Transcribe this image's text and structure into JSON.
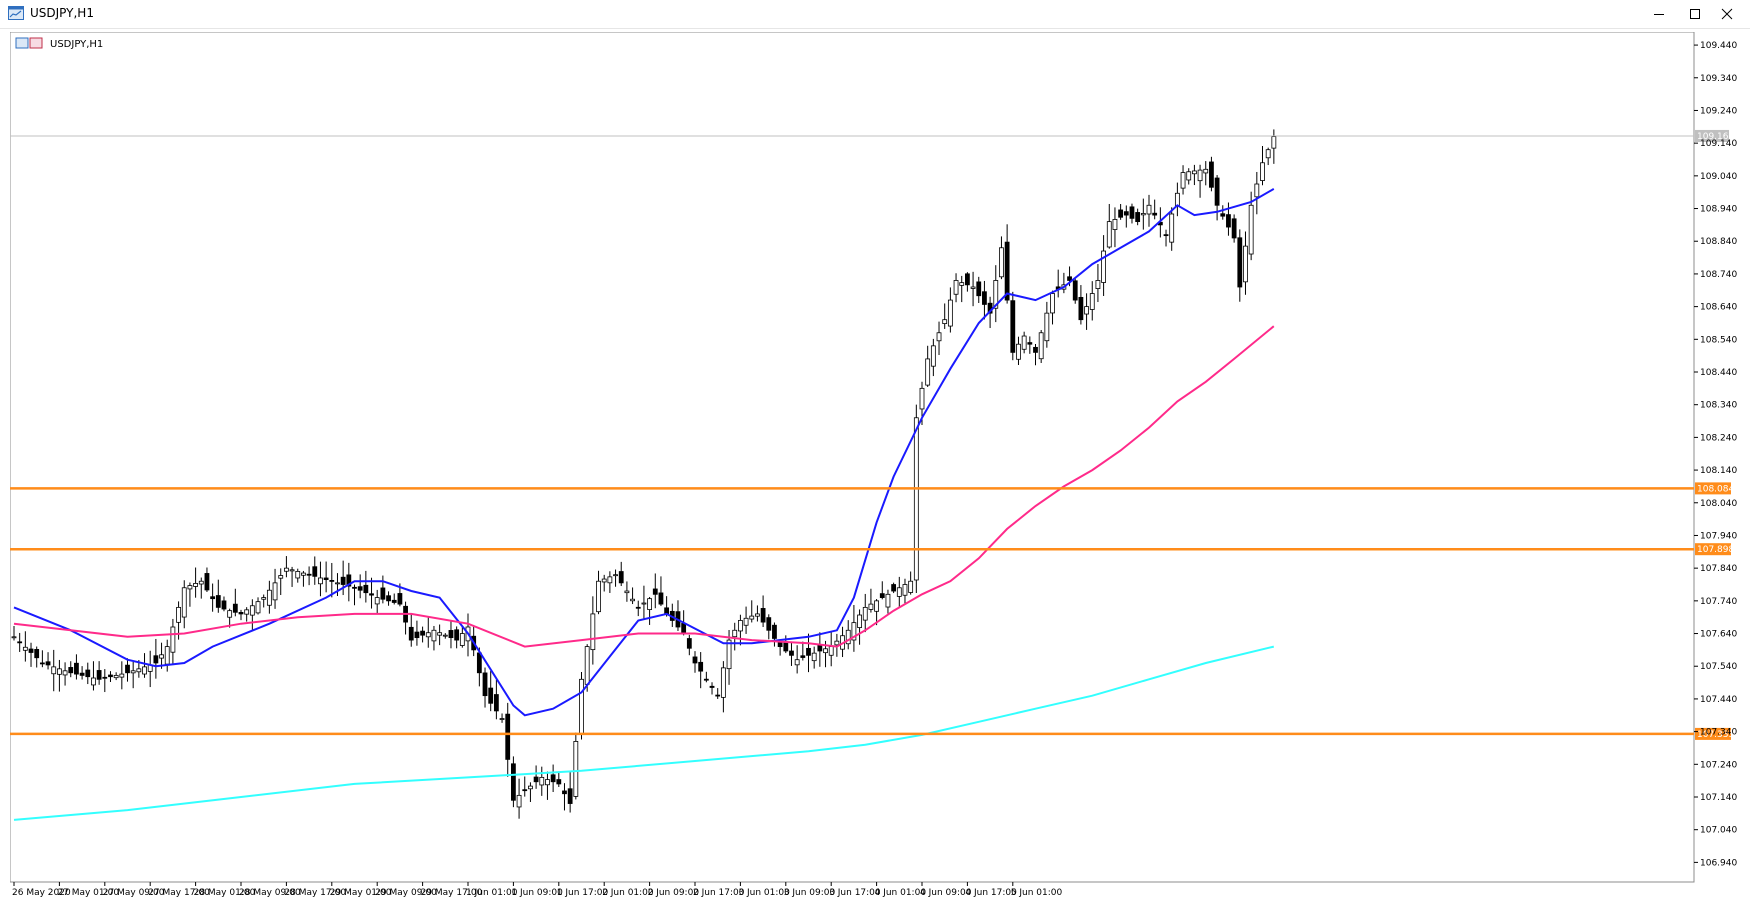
{
  "window": {
    "title": "USDJPY,H1",
    "buttons": {
      "minimize": "minimize",
      "maximize": "maximize",
      "close": "close"
    }
  },
  "chart_data": {
    "type": "candlestick",
    "title": "USDJPY, H1",
    "symbol": "USDJPY",
    "timeframe": "H1",
    "ylim": [
      106.88,
      109.48
    ],
    "y_ticks": [
      106.94,
      107.04,
      107.14,
      107.24,
      107.34,
      107.44,
      107.54,
      107.64,
      107.74,
      107.84,
      107.94,
      108.04,
      108.14,
      108.24,
      108.34,
      108.44,
      108.54,
      108.64,
      108.74,
      108.84,
      108.94,
      109.04,
      109.14,
      109.24,
      109.34,
      109.44
    ],
    "x_labels": [
      "26 May 2020",
      "27 May 01:00",
      "27 May 09:00",
      "27 May 17:00",
      "28 May 01:00",
      "28 May 09:00",
      "28 May 17:00",
      "29 May 01:00",
      "29 May 09:00",
      "29 May 17:00",
      "1 Jun 01:00",
      "1 Jun 09:00",
      "1 Jun 17:00",
      "2 Jun 01:00",
      "2 Jun 09:00",
      "2 Jun 17:00",
      "3 Jun 01:00",
      "3 Jun 09:00",
      "3 Jun 17:00",
      "4 Jun 01:00",
      "4 Jun 09:00",
      "4 Jun 17:00",
      "5 Jun 01:00"
    ],
    "x_label_step": 8,
    "bar_count": 223,
    "current_price": {
      "value": 109.162,
      "label": "109.162",
      "color": "#c0c0c0"
    },
    "horizontal_levels": [
      {
        "value": 108.084,
        "label": "108.084",
        "color": "#ff8c1a"
      },
      {
        "value": 107.898,
        "label": "107.898",
        "color": "#ff8c1a"
      },
      {
        "value": 107.333,
        "label": "107.333",
        "color": "#ff8c1a"
      }
    ],
    "moving_averages": [
      {
        "color": "#1a1aff",
        "points": [
          [
            0,
            107.72
          ],
          [
            10,
            107.65
          ],
          [
            20,
            107.56
          ],
          [
            25,
            107.54
          ],
          [
            30,
            107.55
          ],
          [
            35,
            107.6
          ],
          [
            45,
            107.67
          ],
          [
            55,
            107.75
          ],
          [
            60,
            107.8
          ],
          [
            65,
            107.8
          ],
          [
            70,
            107.77
          ],
          [
            75,
            107.75
          ],
          [
            80,
            107.64
          ],
          [
            88,
            107.42
          ],
          [
            90,
            107.39
          ],
          [
            95,
            107.41
          ],
          [
            100,
            107.46
          ],
          [
            105,
            107.57
          ],
          [
            110,
            107.68
          ],
          [
            115,
            107.7
          ],
          [
            125,
            107.61
          ],
          [
            130,
            107.61
          ],
          [
            140,
            107.63
          ],
          [
            145,
            107.65
          ],
          [
            148,
            107.75
          ],
          [
            152,
            107.98
          ],
          [
            155,
            108.12
          ],
          [
            160,
            108.3
          ],
          [
            165,
            108.45
          ],
          [
            170,
            108.59
          ],
          [
            175,
            108.68
          ],
          [
            180,
            108.66
          ],
          [
            185,
            108.7
          ],
          [
            190,
            108.77
          ],
          [
            195,
            108.82
          ],
          [
            200,
            108.87
          ],
          [
            205,
            108.95
          ],
          [
            208,
            108.92
          ],
          [
            212,
            108.93
          ],
          [
            218,
            108.96
          ],
          [
            222,
            109.0
          ]
        ]
      },
      {
        "color": "#ff2a8a",
        "points": [
          [
            0,
            107.67
          ],
          [
            10,
            107.65
          ],
          [
            20,
            107.63
          ],
          [
            30,
            107.64
          ],
          [
            40,
            107.67
          ],
          [
            50,
            107.69
          ],
          [
            60,
            107.7
          ],
          [
            70,
            107.7
          ],
          [
            80,
            107.67
          ],
          [
            90,
            107.6
          ],
          [
            100,
            107.62
          ],
          [
            110,
            107.64
          ],
          [
            120,
            107.64
          ],
          [
            130,
            107.62
          ],
          [
            140,
            107.61
          ],
          [
            145,
            107.6
          ],
          [
            150,
            107.65
          ],
          [
            155,
            107.71
          ],
          [
            160,
            107.76
          ],
          [
            165,
            107.8
          ],
          [
            170,
            107.87
          ],
          [
            175,
            107.96
          ],
          [
            180,
            108.03
          ],
          [
            185,
            108.09
          ],
          [
            190,
            108.14
          ],
          [
            195,
            108.2
          ],
          [
            200,
            108.27
          ],
          [
            205,
            108.35
          ],
          [
            210,
            108.41
          ],
          [
            215,
            108.48
          ],
          [
            222,
            108.58
          ]
        ]
      },
      {
        "color": "#33ffff",
        "points": [
          [
            0,
            107.07
          ],
          [
            20,
            107.1
          ],
          [
            40,
            107.14
          ],
          [
            60,
            107.18
          ],
          [
            80,
            107.2
          ],
          [
            100,
            107.22
          ],
          [
            120,
            107.25
          ],
          [
            140,
            107.28
          ],
          [
            150,
            107.3
          ],
          [
            160,
            107.33
          ],
          [
            170,
            107.37
          ],
          [
            180,
            107.41
          ],
          [
            190,
            107.45
          ],
          [
            200,
            107.5
          ],
          [
            210,
            107.55
          ],
          [
            222,
            107.6
          ]
        ]
      }
    ]
  }
}
